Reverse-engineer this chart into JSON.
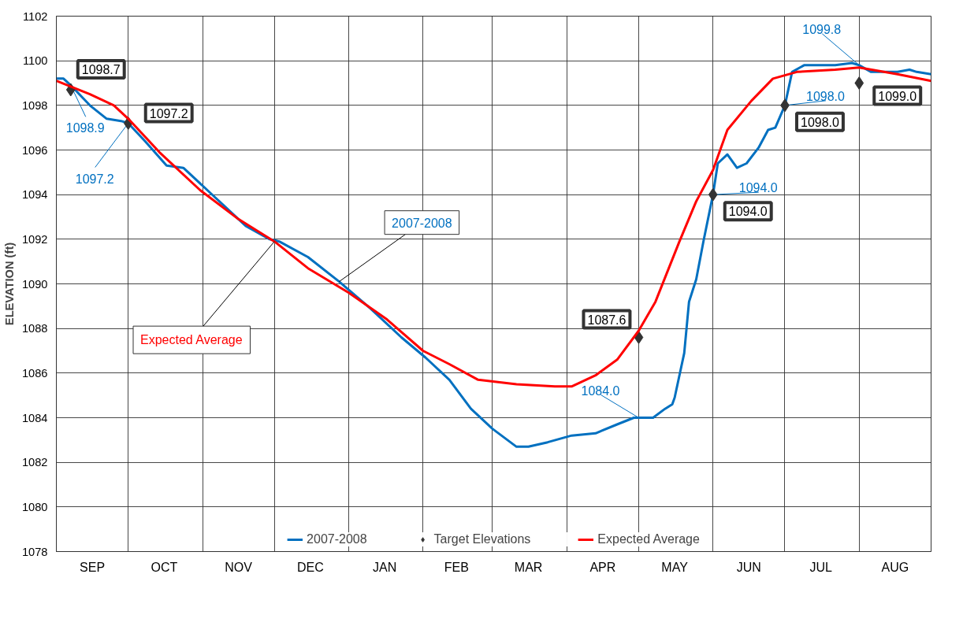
{
  "chart_data": {
    "type": "line",
    "ylabel": "ELEVATION (ft)",
    "xlim": [
      "2007-09-01",
      "2008-08-31"
    ],
    "ylim": [
      1078,
      1102
    ],
    "xticks": [
      {
        "value": "2007-09-01",
        "label": null
      },
      {
        "value": "2007-09-16",
        "label": "SEP"
      },
      {
        "value": "2007-10-01",
        "label": null
      },
      {
        "value": "2007-10-16",
        "label": "OCT"
      },
      {
        "value": "2007-11-01",
        "label": null
      },
      {
        "value": "2007-11-16",
        "label": "NOV"
      },
      {
        "value": "2007-12-01",
        "label": null
      },
      {
        "value": "2007-12-16",
        "label": "DEC"
      },
      {
        "value": "2008-01-01",
        "label": null
      },
      {
        "value": "2008-01-16",
        "label": "JAN"
      },
      {
        "value": "2008-02-01",
        "label": null
      },
      {
        "value": "2008-02-15",
        "label": "FEB"
      },
      {
        "value": "2008-03-01",
        "label": null
      },
      {
        "value": "2008-03-16",
        "label": "MAR"
      },
      {
        "value": "2008-04-01",
        "label": null
      },
      {
        "value": "2008-04-16",
        "label": "APR"
      },
      {
        "value": "2008-05-01",
        "label": null
      },
      {
        "value": "2008-05-16",
        "label": "MAY"
      },
      {
        "value": "2008-06-01",
        "label": null
      },
      {
        "value": "2008-06-16",
        "label": "JUN"
      },
      {
        "value": "2008-07-01",
        "label": null
      },
      {
        "value": "2008-07-16",
        "label": "JUL"
      },
      {
        "value": "2008-08-01",
        "label": null
      },
      {
        "value": "2008-08-16",
        "label": "AUG"
      }
    ],
    "yticks": [
      1078,
      1080,
      1082,
      1084,
      1086,
      1088,
      1090,
      1092,
      1094,
      1096,
      1098,
      1100,
      1102
    ],
    "grid": true,
    "legend": "bottom",
    "series": [
      {
        "name": "2007-2008",
        "color": "#0070c0",
        "x": [
          "2007-09-01",
          "2007-09-04",
          "2007-09-07",
          "2007-09-15",
          "2007-09-22",
          "2007-09-28",
          "2007-10-01",
          "2007-10-08",
          "2007-10-17",
          "2007-10-24",
          "2007-11-06",
          "2007-11-19",
          "2007-11-29",
          "2007-12-03",
          "2007-12-15",
          "2007-12-28",
          "2008-01-10",
          "2008-01-23",
          "2008-02-02",
          "2008-02-12",
          "2008-02-21",
          "2008-03-01",
          "2008-03-11",
          "2008-03-16",
          "2008-03-24",
          "2008-04-03",
          "2008-04-13",
          "2008-04-22",
          "2008-04-29",
          "2008-05-01",
          "2008-05-07",
          "2008-05-12",
          "2008-05-15",
          "2008-05-16",
          "2008-05-20",
          "2008-05-22",
          "2008-05-25",
          "2008-05-28",
          "2008-06-01",
          "2008-06-03",
          "2008-06-07",
          "2008-06-11",
          "2008-06-15",
          "2008-06-20",
          "2008-06-24",
          "2008-06-27",
          "2008-07-01",
          "2008-07-04",
          "2008-07-09",
          "2008-07-15",
          "2008-07-22",
          "2008-07-29",
          "2008-08-01",
          "2008-08-06",
          "2008-08-17",
          "2008-08-22",
          "2008-08-25",
          "2008-08-31"
        ],
        "values": [
          1099.2,
          1099.2,
          1098.9,
          1098.0,
          1097.4,
          1097.3,
          1097.2,
          1096.4,
          1095.3,
          1095.2,
          1093.9,
          1092.6,
          1092.0,
          1091.9,
          1091.2,
          1090.1,
          1088.9,
          1087.6,
          1086.7,
          1085.7,
          1084.4,
          1083.5,
          1082.7,
          1082.7,
          1082.9,
          1083.2,
          1083.3,
          1083.7,
          1084.0,
          1084.0,
          1084.0,
          1084.4,
          1084.6,
          1084.9,
          1086.9,
          1089.2,
          1090.2,
          1091.9,
          1094.0,
          1095.4,
          1095.8,
          1095.2,
          1095.4,
          1096.1,
          1096.9,
          1097.0,
          1098.0,
          1099.5,
          1099.8,
          1099.8,
          1099.8,
          1099.9,
          1099.8,
          1099.5,
          1099.5,
          1099.6,
          1099.5,
          1099.4
        ],
        "value_labels": [
          null,
          null,
          "1098.9",
          null,
          null,
          null,
          "1097.2",
          null,
          null,
          null,
          null,
          null,
          null,
          null,
          null,
          null,
          null,
          null,
          null,
          null,
          null,
          null,
          null,
          null,
          null,
          null,
          null,
          null,
          null,
          "1084.0",
          null,
          null,
          null,
          null,
          null,
          null,
          null,
          null,
          "1094.0",
          null,
          null,
          null,
          null,
          null,
          null,
          null,
          "1098.0",
          null,
          null,
          null,
          null,
          null,
          "1099.8",
          null,
          null,
          null,
          null,
          null
        ]
      },
      {
        "name": "Target Elevations",
        "type": "scatter",
        "marker": "diamond",
        "color": "#333333",
        "x": [
          "2007-09-07",
          "2007-10-01",
          "2008-05-01",
          "2008-06-01",
          "2008-07-01",
          "2008-08-01"
        ],
        "values": [
          1098.7,
          1097.2,
          1087.6,
          1094.0,
          1098.0,
          1099.0
        ],
        "value_labels": [
          "1098.7",
          "1097.2",
          "1087.6",
          "1094.0",
          "1098.0",
          "1099.0"
        ]
      },
      {
        "name": "Expected Average",
        "color": "#ff0000",
        "x": [
          "2007-09-01",
          "2007-09-15",
          "2007-09-25",
          "2007-10-01",
          "2007-10-14",
          "2007-10-31",
          "2007-11-16",
          "2007-12-01",
          "2007-12-15",
          "2008-01-01",
          "2008-01-17",
          "2008-02-01",
          "2008-02-12",
          "2008-02-24",
          "2008-03-11",
          "2008-03-27",
          "2008-04-03",
          "2008-04-13",
          "2008-04-22",
          "2008-05-01",
          "2008-05-08",
          "2008-05-18",
          "2008-05-25",
          "2008-06-01",
          "2008-06-07",
          "2008-06-17",
          "2008-06-26",
          "2008-07-06",
          "2008-07-22",
          "2008-08-01",
          "2008-08-17",
          "2008-08-31"
        ],
        "values": [
          1099.1,
          1098.5,
          1098.0,
          1097.4,
          1095.9,
          1094.2,
          1092.9,
          1091.9,
          1090.7,
          1089.6,
          1088.4,
          1087.0,
          1086.4,
          1085.7,
          1085.5,
          1085.4,
          1085.4,
          1085.9,
          1086.6,
          1087.9,
          1089.2,
          1091.9,
          1093.7,
          1095.1,
          1096.9,
          1098.2,
          1099.2,
          1099.5,
          1099.6,
          1099.7,
          1099.4,
          1099.1
        ]
      }
    ]
  }
}
